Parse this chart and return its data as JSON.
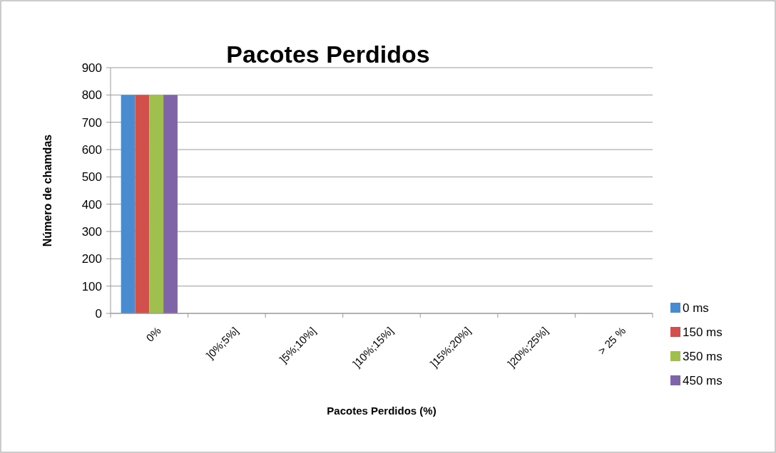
{
  "chart_data": {
    "type": "bar",
    "title": "Pacotes Perdidos",
    "xlabel": "Pacotes Perdidos (%)",
    "ylabel": "Número de chamdas",
    "categories": [
      "0%",
      "]0%;5%]",
      "]5%;10%]",
      "]10%;15%]",
      "]15%;20%]",
      "]20%;25%]",
      "> 25 %"
    ],
    "series": [
      {
        "name": "0 ms",
        "color": "#4a8bd0",
        "values": [
          800,
          0,
          0,
          0,
          0,
          0,
          0
        ]
      },
      {
        "name": "150 ms",
        "color": "#d2504b",
        "values": [
          800,
          0,
          0,
          0,
          0,
          0,
          0
        ]
      },
      {
        "name": "350 ms",
        "color": "#9fc04f",
        "values": [
          800,
          0,
          0,
          0,
          0,
          0,
          0
        ]
      },
      {
        "name": "450 ms",
        "color": "#8064a8",
        "values": [
          800,
          0,
          0,
          0,
          0,
          0,
          0
        ]
      }
    ],
    "ylim": [
      0,
      900
    ],
    "yticks": [
      0,
      100,
      200,
      300,
      400,
      500,
      600,
      700,
      800,
      900
    ],
    "grid": "y",
    "legend": "right"
  }
}
